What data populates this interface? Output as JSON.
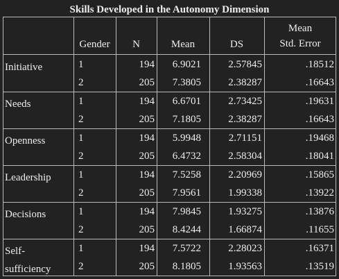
{
  "title": "Skills Developed in the Autonomy Dimension",
  "table": {
    "header": [
      "Gender",
      "N",
      "Mean",
      "DS",
      "Mean Std. Error"
    ],
    "groups": [
      {
        "label": "Initiative",
        "rows": [
          [
            "1",
            "194",
            "6.9021",
            "2.57845",
            ".18512"
          ],
          [
            "2",
            "205",
            "7.3805",
            "2.38287",
            ".16643"
          ]
        ]
      },
      {
        "label": "Needs",
        "rows": [
          [
            "1",
            "194",
            "6.6701",
            "2.73425",
            ".19631"
          ],
          [
            "2",
            "205",
            "7.1805",
            "2.38287",
            ".16643"
          ]
        ]
      },
      {
        "label": "Openness",
        "rows": [
          [
            "1",
            "194",
            "5.9948",
            "2.71151",
            ".19468"
          ],
          [
            "2",
            "205",
            "6.4732",
            "2.58304",
            ".18041"
          ]
        ]
      },
      {
        "label": "Leadership",
        "rows": [
          [
            "1",
            "194",
            "7.5258",
            "2.20969",
            ".15865"
          ],
          [
            "2",
            "205",
            "7.9561",
            "1.99338",
            ".13922"
          ]
        ]
      },
      {
        "label": "Decisions",
        "rows": [
          [
            "1",
            "194",
            "7.9845",
            "1.93275",
            ".13876"
          ],
          [
            "2",
            "205",
            "8.4244",
            "1.66874",
            ".11655"
          ]
        ]
      },
      {
        "label": "Self-sufficiency",
        "rows": [
          [
            "1",
            "194",
            "7.5722",
            "2.28023",
            ".16371"
          ],
          [
            "2",
            "205",
            "8.1805",
            "1.93563",
            ".13519"
          ]
        ]
      }
    ]
  }
}
